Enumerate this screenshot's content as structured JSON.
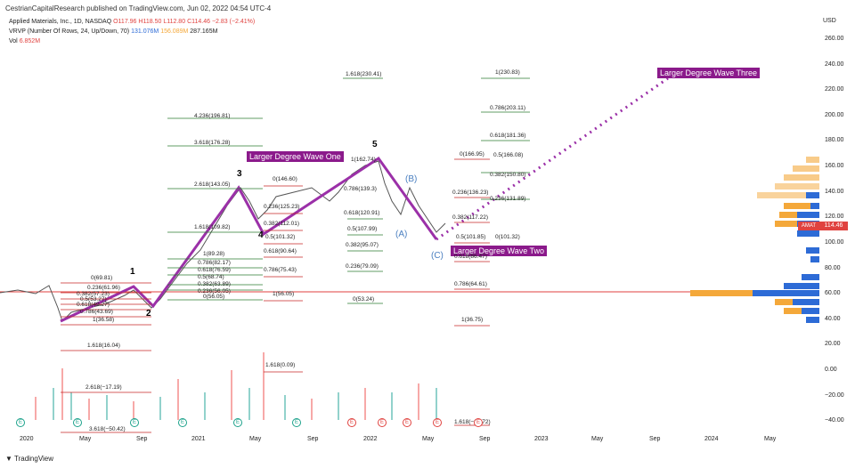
{
  "header": {
    "publish_line": "CestrianCapitalResearch published on TradingView.com, Jun 02, 2022 04:54 UTC-4"
  },
  "legend": {
    "symbol": "Applied Materials, Inc., 1D, NASDAQ",
    "o": "O117.96",
    "h": "H118.50",
    "l": "L112.80",
    "c": "C114.46",
    "chg": "−2.83 (−2.41%)",
    "vrvp": "VRVP (Number Of Rows, 24, Up/Down, 70)",
    "vrvp_up": "131.076M",
    "vrvp_down": "156.089M",
    "vrvp_total": "287.165M",
    "vol_label": "Vol",
    "vol_value": "6.852M"
  },
  "price_axis": {
    "currency": "USD",
    "ticks": [
      "260.00",
      "240.00",
      "220.00",
      "200.00",
      "180.00",
      "160.00",
      "140.00",
      "120.00",
      "100.00",
      "80.00",
      "60.00",
      "40.00",
      "20.00",
      "0.00",
      "−20.00",
      "−40.00"
    ],
    "last_price": "114.46",
    "symbol_badge": "AMAT"
  },
  "time_axis": {
    "ticks": [
      "2020",
      "May",
      "Sep",
      "2021",
      "May",
      "Sep",
      "2022",
      "May",
      "Sep",
      "2023",
      "May",
      "Sep",
      "2024",
      "May"
    ]
  },
  "waves": {
    "w1": "1",
    "w2": "2",
    "w3": "3",
    "w4": "4",
    "w5": "5",
    "a": "(A)",
    "b": "(B)",
    "c": "(C)"
  },
  "tags": {
    "wave_one": "Larger Degree Wave One",
    "wave_two": "Larger Degree Wave Two",
    "wave_three": "Larger Degree Wave Three"
  },
  "fib_labels": [
    "1.618(230.41)",
    "4.236(196.81)",
    "3.618(176.28)",
    "2.618(143.05)",
    "1.618(109.82)",
    "1(89.28)",
    "0.786(82.17)",
    "0.618(76.59)",
    "0.5(68.74)",
    "0.382(63.89)",
    "0.236(56.05)",
    "0(56.05)",
    "0(69.81)",
    "0.236(61.96)",
    "0.382(57.23)",
    "0.5(53.27)",
    "0.618(49.27)",
    "0.786(43.69)",
    "1(36.58)",
    "1.618(16.04)",
    "2.618(−17.19)",
    "3.618(−50.42)",
    "0(146.60)",
    "0.236(125.23)",
    "0.382(112.01)",
    "0.5(101.32)",
    "0.618(90.64)",
    "0.786(75.43)",
    "1(56.05)",
    "1.618(0.09)",
    "1(162.74)",
    "0.786(139.3)",
    "0.618(120.91)",
    "0.5(107.99)",
    "0.382(95.07)",
    "0.236(79.09)",
    "0(53.24)",
    "1(230.83)",
    "0.786(203.11)",
    "0.618(181.36)",
    "0(166.95)",
    "0.5(166.08)",
    "0.382(150.80)",
    "0.236(136.23)",
    "0.236(131.89)",
    "0.382(117.22)",
    "0.5(101.85)",
    "0(101.32)",
    "0.618(86.47)",
    "0.786(64.61)",
    "1(36.75)",
    "1.618(−20.72)"
  ],
  "earnings_markers": [
    "E",
    "E",
    "E",
    "E",
    "E",
    "E",
    "E",
    "E",
    "E",
    "E",
    "E"
  ],
  "footer": {
    "brand": "TradingView"
  },
  "colors": {
    "wave_line": "#9b30a8",
    "tag_bg": "#8b1a8b",
    "fib_green": "#2e7d32",
    "fib_red": "#c62828",
    "support": "#e0423f",
    "up": "#26a69a",
    "down": "#ef5350",
    "vrvp_up": "#2d6bd6",
    "vrvp_down": "#f4a83a"
  }
}
